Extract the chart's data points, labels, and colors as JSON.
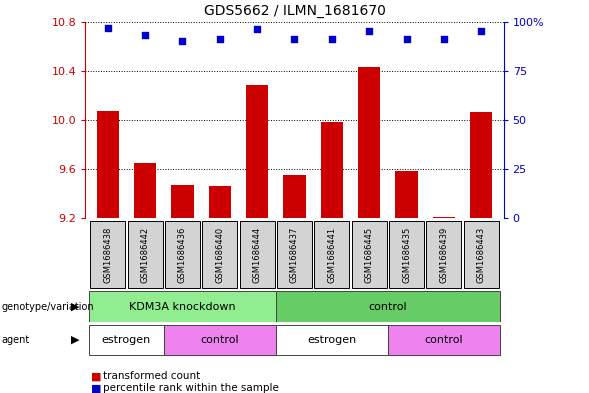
{
  "title": "GDS5662 / ILMN_1681670",
  "samples": [
    "GSM1686438",
    "GSM1686442",
    "GSM1686436",
    "GSM1686440",
    "GSM1686444",
    "GSM1686437",
    "GSM1686441",
    "GSM1686445",
    "GSM1686435",
    "GSM1686439",
    "GSM1686443"
  ],
  "bar_values": [
    10.07,
    9.65,
    9.47,
    9.46,
    10.28,
    9.55,
    9.98,
    10.43,
    9.58,
    9.21,
    10.06
  ],
  "percentile_values": [
    97,
    93,
    90,
    91,
    96,
    91,
    91,
    95,
    91,
    91,
    95
  ],
  "ylim_left": [
    9.2,
    10.8
  ],
  "ylim_right": [
    0,
    100
  ],
  "yticks_left": [
    9.2,
    9.6,
    10.0,
    10.4,
    10.8
  ],
  "yticks_right": [
    0,
    25,
    50,
    75,
    100
  ],
  "bar_color": "#cc0000",
  "dot_color": "#0000cc",
  "genotype_groups": [
    {
      "label": "KDM3A knockdown",
      "start": 0,
      "end": 5,
      "color": "#90ee90"
    },
    {
      "label": "control",
      "start": 5,
      "end": 11,
      "color": "#66cc66"
    }
  ],
  "agent_groups": [
    {
      "label": "estrogen",
      "start": 0,
      "end": 2,
      "color": "#ffffff"
    },
    {
      "label": "control",
      "start": 2,
      "end": 5,
      "color": "#ee82ee"
    },
    {
      "label": "estrogen",
      "start": 5,
      "end": 8,
      "color": "#ffffff"
    },
    {
      "label": "control",
      "start": 8,
      "end": 11,
      "color": "#ee82ee"
    }
  ],
  "legend_items": [
    {
      "label": "transformed count",
      "color": "#cc0000"
    },
    {
      "label": "percentile rank within the sample",
      "color": "#0000cc"
    }
  ],
  "background_color": "#ffffff",
  "left_axis_color": "#cc0000",
  "right_axis_color": "#0000cc",
  "sample_box_color": "#d3d3d3"
}
